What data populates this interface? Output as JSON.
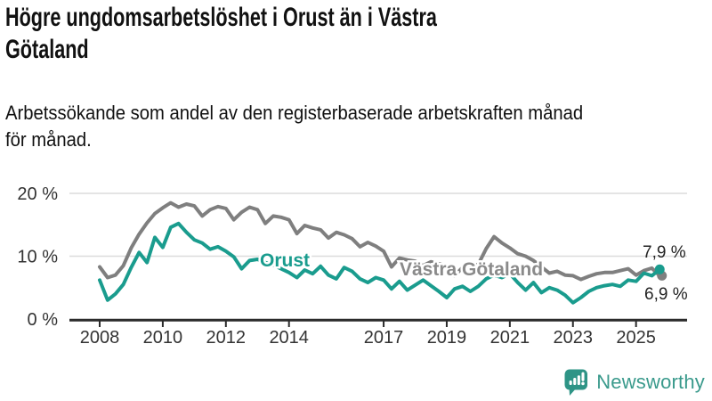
{
  "header": {
    "title_line1": "Högre ungdomsarbetslöshet i Orust än i Västra",
    "title_line2": "Götaland",
    "subtitle_line1": "Arbetssökande som andel av den registerbaserade arbetskraften månad",
    "subtitle_line2": "för månad."
  },
  "colors": {
    "orust": "#1a9c8e",
    "vastra_gotaland": "#7f7f7f",
    "vastra_gotaland_label": "#8a8a8a",
    "grid": "#dcdcdc",
    "axis": "#2b2b2b",
    "tick_text": "#333333",
    "end_label_text": "#222222",
    "logo_teal": "#3a9a8c"
  },
  "chart_data": {
    "type": "line",
    "title": "Högre ungdomsarbetslöshet i Orust än i Västra Götaland",
    "subtitle": "Arbetssökande som andel av den registerbaserade arbetskraften månad för månad.",
    "xlabel": "",
    "ylabel": "",
    "grid": "horizontal",
    "legend_position": "inline-labels",
    "ylim": [
      0,
      20
    ],
    "xlim": [
      2007.0,
      2026.6
    ],
    "y_ticks": [
      {
        "value": 0,
        "label": "0 %"
      },
      {
        "value": 10,
        "label": "10 %"
      },
      {
        "value": 20,
        "label": "20 %"
      }
    ],
    "x_ticks": [
      {
        "value": 2008,
        "label": "2008"
      },
      {
        "value": 2010,
        "label": "2010"
      },
      {
        "value": 2012,
        "label": "2012"
      },
      {
        "value": 2014,
        "label": "2014"
      },
      {
        "value": 2017,
        "label": "2017"
      },
      {
        "value": 2019,
        "label": "2019"
      },
      {
        "value": 2021,
        "label": "2021"
      },
      {
        "value": 2023,
        "label": "2023"
      },
      {
        "value": 2025,
        "label": "2025"
      }
    ],
    "x_start": 2008.0,
    "x_step": 0.25,
    "x_unit": "year (quarterly samples of monthly data)",
    "series": [
      {
        "name": "Västra Götaland",
        "color": "#7f7f7f",
        "end_label": "6,9 %",
        "end_value": 6.9,
        "values": [
          8.3,
          6.6,
          7.0,
          8.5,
          11.3,
          13.5,
          15.3,
          16.8,
          17.7,
          18.5,
          17.8,
          18.3,
          18.0,
          16.4,
          17.4,
          17.9,
          17.6,
          15.8,
          17.0,
          17.8,
          17.4,
          15.2,
          16.4,
          16.2,
          15.8,
          13.6,
          14.9,
          14.5,
          14.2,
          12.9,
          13.8,
          13.4,
          12.8,
          11.5,
          12.2,
          11.6,
          10.8,
          8.3,
          9.7,
          9.4,
          9.2,
          8.5,
          9.1,
          8.8,
          8.4,
          6.9,
          8.2,
          8.4,
          8.7,
          11.2,
          13.1,
          12.1,
          11.3,
          10.4,
          10.0,
          9.3,
          8.3,
          7.3,
          7.6,
          7.0,
          6.9,
          6.3,
          6.8,
          7.2,
          7.4,
          7.4,
          7.7,
          8.0,
          7.0,
          7.7,
          8.1,
          6.9
        ]
      },
      {
        "name": "Orust",
        "color": "#1a9c8e",
        "end_label": "7,9 %",
        "end_value": 7.9,
        "values": [
          6.2,
          3.0,
          4.0,
          5.5,
          8.2,
          10.6,
          9.0,
          13.0,
          11.4,
          14.6,
          15.2,
          13.8,
          12.6,
          12.1,
          11.1,
          11.5,
          10.8,
          9.9,
          8.0,
          9.3,
          9.5,
          9.0,
          8.6,
          8.0,
          7.4,
          6.6,
          7.8,
          7.2,
          8.4,
          7.0,
          6.4,
          8.2,
          7.6,
          6.4,
          5.8,
          6.6,
          6.2,
          4.8,
          6.0,
          4.6,
          5.4,
          6.2,
          5.3,
          4.4,
          3.4,
          4.8,
          5.2,
          4.4,
          5.2,
          6.4,
          7.0,
          6.6,
          7.2,
          5.8,
          4.6,
          5.8,
          4.2,
          5.0,
          4.6,
          3.8,
          2.6,
          3.4,
          4.4,
          5.0,
          5.3,
          5.5,
          5.2,
          6.2,
          6.0,
          7.3,
          6.9,
          7.9
        ]
      }
    ]
  },
  "footer": {
    "brand": "Newsworthy"
  }
}
